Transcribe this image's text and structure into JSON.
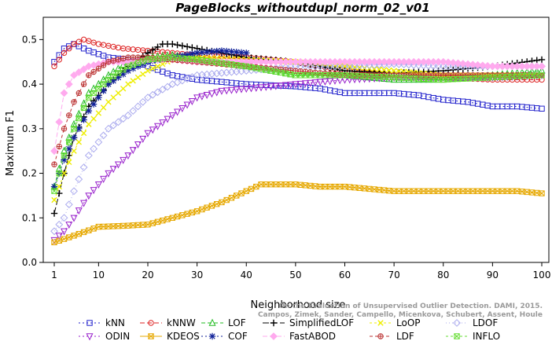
{
  "chart_data": {
    "type": "line",
    "title": "PageBlocks_withoutdupl_norm_02_v01",
    "xlabel": "Neighborhood size",
    "ylabel": "Maximum F1",
    "xlim": [
      1,
      100
    ],
    "ylim": [
      0,
      0.55
    ],
    "x_ticks": [
      1,
      10,
      20,
      30,
      40,
      50,
      60,
      70,
      80,
      90,
      100
    ],
    "y_ticks": [
      0.0,
      0.1,
      0.2,
      0.3,
      0.4,
      0.5
    ],
    "legend_position": "bottom",
    "watermark": [
      "Campos, Zimek, Sander, Campello, Micenkova, Schubert, Assent, Houle",
      "On the Evaluation of Unsupervised Outlier Detection. DAMI, 2015."
    ],
    "series": [
      {
        "name": "kNN",
        "color": "#2222cc",
        "marker": "square",
        "dash": "2,3",
        "x": [
          1,
          3,
          5,
          8,
          12,
          16,
          20,
          25,
          30,
          35,
          40,
          50,
          55,
          60,
          70,
          75,
          80,
          85,
          90,
          95,
          100
        ],
        "y": [
          0.45,
          0.48,
          0.49,
          0.475,
          0.46,
          0.455,
          0.44,
          0.42,
          0.41,
          0.405,
          0.4,
          0.395,
          0.39,
          0.38,
          0.38,
          0.375,
          0.365,
          0.36,
          0.35,
          0.35,
          0.345
        ]
      },
      {
        "name": "kNNW",
        "color": "#dd2222",
        "marker": "circle",
        "dash": "6,3",
        "x": [
          1,
          3,
          5,
          7,
          10,
          15,
          20,
          25,
          30,
          40,
          50,
          60,
          70,
          80,
          90,
          100
        ],
        "y": [
          0.44,
          0.47,
          0.49,
          0.5,
          0.49,
          0.48,
          0.475,
          0.47,
          0.465,
          0.46,
          0.45,
          0.43,
          0.42,
          0.415,
          0.41,
          0.41
        ]
      },
      {
        "name": "LOF",
        "color": "#22bb22",
        "marker": "triangle",
        "dash": "5,3",
        "x": [
          1,
          3,
          5,
          8,
          12,
          16,
          20,
          25,
          30,
          40,
          50,
          60,
          70,
          80,
          90,
          100
        ],
        "y": [
          0.17,
          0.25,
          0.31,
          0.38,
          0.42,
          0.45,
          0.46,
          0.465,
          0.455,
          0.44,
          0.42,
          0.42,
          0.41,
          0.41,
          0.42,
          0.43
        ]
      },
      {
        "name": "SimplifiedLOF",
        "color": "#000000",
        "marker": "plus",
        "dash": "8,3",
        "x": [
          1,
          3,
          5,
          8,
          12,
          16,
          20,
          23,
          25,
          30,
          40,
          50,
          60,
          70,
          80,
          90,
          100
        ],
        "y": [
          0.11,
          0.2,
          0.28,
          0.35,
          0.4,
          0.44,
          0.47,
          0.49,
          0.49,
          0.48,
          0.46,
          0.45,
          0.43,
          0.425,
          0.43,
          0.44,
          0.455
        ]
      },
      {
        "name": "LoOP",
        "color": "#eeee00",
        "marker": "x",
        "dash": "3,3",
        "x": [
          1,
          3,
          5,
          8,
          12,
          16,
          20,
          25,
          30,
          40,
          50,
          60,
          70,
          80,
          90,
          100
        ],
        "y": [
          0.14,
          0.2,
          0.25,
          0.31,
          0.36,
          0.4,
          0.43,
          0.455,
          0.46,
          0.455,
          0.45,
          0.44,
          0.43,
          0.42,
          0.42,
          0.42
        ]
      },
      {
        "name": "LDOF",
        "color": "#aaaaee",
        "marker": "diamond",
        "dash": "1,3",
        "x": [
          1,
          3,
          5,
          8,
          12,
          16,
          20,
          25,
          30,
          40,
          50,
          60,
          70,
          80,
          90,
          100
        ],
        "y": [
          0.07,
          0.1,
          0.16,
          0.24,
          0.3,
          0.33,
          0.37,
          0.4,
          0.42,
          0.43,
          0.44,
          0.44,
          0.445,
          0.44,
          0.44,
          0.44
        ]
      },
      {
        "name": "ODIN",
        "color": "#9922cc",
        "marker": "triangle-down",
        "dash": "2,3",
        "x": [
          1,
          3,
          5,
          8,
          12,
          16,
          20,
          25,
          30,
          35,
          40,
          50,
          60,
          70,
          80,
          90,
          100
        ],
        "y": [
          0.05,
          0.07,
          0.1,
          0.15,
          0.2,
          0.24,
          0.29,
          0.33,
          0.37,
          0.385,
          0.39,
          0.4,
          0.41,
          0.415,
          0.415,
          0.415,
          0.42
        ]
      },
      {
        "name": "KDEOS",
        "color": "#e6a800",
        "marker": "square-x",
        "dash": "none",
        "x": [
          1,
          5,
          10,
          15,
          20,
          25,
          30,
          35,
          40,
          43,
          45,
          50,
          55,
          60,
          65,
          70,
          75,
          80,
          85,
          90,
          95,
          100
        ],
        "y": [
          0.045,
          0.06,
          0.08,
          0.082,
          0.085,
          0.1,
          0.115,
          0.135,
          0.16,
          0.175,
          0.175,
          0.175,
          0.17,
          0.17,
          0.165,
          0.16,
          0.16,
          0.16,
          0.16,
          0.16,
          0.16,
          0.155
        ]
      },
      {
        "name": "COF",
        "color": "#112299",
        "marker": "asterisk",
        "dash": "2,3",
        "x": [
          1,
          3,
          5,
          8,
          12,
          16,
          20,
          25,
          30,
          35,
          40
        ],
        "y": [
          0.17,
          0.23,
          0.28,
          0.34,
          0.4,
          0.43,
          0.45,
          0.46,
          0.47,
          0.475,
          0.47
        ]
      },
      {
        "name": "FastABOD",
        "color": "#ffaaee",
        "marker": "diamond-filled",
        "dash": "6,3",
        "x": [
          1,
          3,
          5,
          8,
          12,
          16,
          20,
          25,
          30,
          40,
          50,
          60,
          70,
          80,
          90,
          100
        ],
        "y": [
          0.25,
          0.38,
          0.42,
          0.44,
          0.45,
          0.45,
          0.455,
          0.455,
          0.45,
          0.45,
          0.45,
          0.45,
          0.45,
          0.45,
          0.44,
          0.44
        ]
      },
      {
        "name": "LDF",
        "color": "#bb3333",
        "marker": "circle-plus",
        "dash": "4,3",
        "x": [
          1,
          3,
          5,
          8,
          12,
          16,
          20,
          25,
          30,
          40,
          50,
          60,
          70,
          80,
          90,
          100
        ],
        "y": [
          0.22,
          0.3,
          0.36,
          0.42,
          0.45,
          0.46,
          0.46,
          0.455,
          0.45,
          0.44,
          0.43,
          0.42,
          0.42,
          0.42,
          0.42,
          0.42
        ]
      },
      {
        "name": "INFLO",
        "color": "#66dd33",
        "marker": "square-x",
        "dash": "3,3",
        "x": [
          1,
          3,
          5,
          8,
          12,
          16,
          20,
          25,
          30,
          40,
          50,
          60,
          70,
          80,
          90,
          100
        ],
        "y": [
          0.16,
          0.24,
          0.3,
          0.37,
          0.41,
          0.44,
          0.455,
          0.46,
          0.455,
          0.44,
          0.42,
          0.42,
          0.415,
          0.41,
          0.415,
          0.42
        ]
      }
    ]
  }
}
